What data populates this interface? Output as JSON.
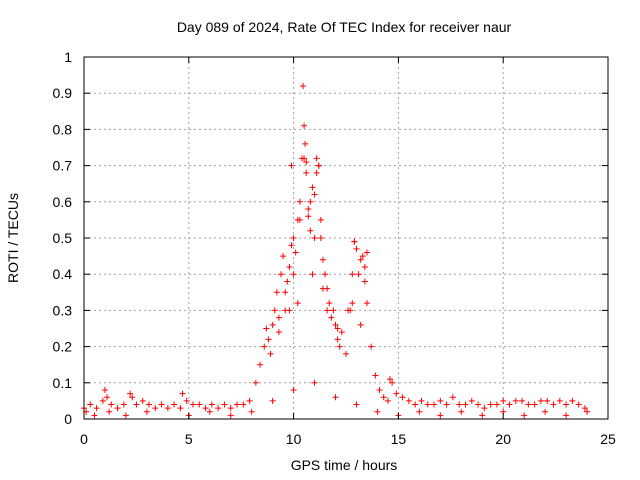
{
  "chart_data": {
    "type": "scatter",
    "title": "Day 089 of 2024, Rate Of TEC Index for receiver naur",
    "xlabel": "GPS time / hours",
    "ylabel": "ROTI / TECUs",
    "xlim": [
      0,
      25
    ],
    "ylim": [
      0,
      1
    ],
    "x_ticks": [
      0,
      5,
      10,
      15,
      20,
      25
    ],
    "y_ticks": [
      0,
      0.1,
      0.2,
      0.3,
      0.4,
      0.5,
      0.6,
      0.7,
      0.8,
      0.9,
      1
    ],
    "x_tick_labels": [
      "0",
      "5",
      "10",
      "15",
      "20",
      "25"
    ],
    "y_tick_labels": [
      "0",
      "0.1",
      "0.2",
      "0.3",
      "0.4",
      "0.5",
      "0.6",
      "0.7",
      "0.8",
      "0.9",
      "1"
    ],
    "grid": true,
    "marker": "plus",
    "color": "#ff0000",
    "series": [
      {
        "x": [
          0.0,
          0.3,
          0.6,
          0.9,
          1.0,
          1.1,
          1.3,
          1.6,
          1.9,
          2.2,
          2.3,
          2.5,
          2.8,
          3.1,
          3.4,
          3.7,
          4.0,
          4.3,
          4.6,
          4.7,
          4.9,
          5.2,
          5.5,
          5.8,
          6.1,
          6.4,
          6.7,
          7.0,
          7.3,
          7.6,
          7.9,
          8.2,
          8.4,
          8.6,
          8.7,
          8.8,
          8.9,
          9.0,
          9.1,
          9.2,
          9.3,
          9.4,
          9.5,
          9.6,
          9.7,
          9.8,
          9.9,
          10.0,
          10.1,
          10.2,
          10.3,
          10.4,
          10.45,
          10.5,
          10.55,
          10.6,
          10.7,
          10.8,
          10.9,
          11.0,
          11.1,
          11.2,
          11.3,
          11.4,
          11.5,
          11.6,
          11.7,
          11.8,
          11.9,
          12.0,
          12.1,
          12.2,
          12.3,
          12.5,
          12.7,
          12.8,
          12.9,
          13.0,
          13.1,
          13.2,
          13.3,
          13.4,
          13.5,
          13.7,
          13.9,
          14.1,
          14.3,
          14.5,
          14.6,
          14.7,
          14.9,
          15.2,
          15.5,
          15.8,
          16.1,
          16.4,
          16.7,
          17.0,
          17.3,
          17.6,
          17.9,
          18.2,
          18.5,
          18.8,
          19.1,
          19.4,
          19.7,
          20.0,
          20.3,
          20.6,
          20.9,
          21.2,
          21.5,
          21.8,
          22.1,
          22.4,
          22.7,
          23.0,
          23.3,
          23.6,
          23.9,
          9.9,
          10.0,
          10.3,
          10.5,
          10.6,
          10.7,
          10.8,
          11.0,
          11.1,
          11.2,
          11.3,
          12.8,
          12.9,
          13.4,
          13.5,
          9.3,
          9.6,
          9.8,
          10.2,
          10.9,
          11.4,
          11.6,
          12.1,
          12.6,
          13.2,
          0.1,
          0.5,
          1.2,
          2.0,
          3.0,
          5.0,
          6.0,
          7.0,
          8.0,
          9.0,
          10.0,
          11.0,
          12.0,
          13.0,
          14.0,
          15.0,
          16.0,
          17.0,
          18.0,
          19.0,
          20.0,
          21.0,
          22.0,
          23.0,
          24.0
        ],
        "y": [
          0.03,
          0.04,
          0.03,
          0.05,
          0.08,
          0.06,
          0.04,
          0.03,
          0.04,
          0.07,
          0.06,
          0.04,
          0.05,
          0.04,
          0.03,
          0.04,
          0.03,
          0.04,
          0.03,
          0.07,
          0.05,
          0.04,
          0.04,
          0.03,
          0.04,
          0.03,
          0.04,
          0.03,
          0.04,
          0.04,
          0.05,
          0.1,
          0.15,
          0.2,
          0.25,
          0.22,
          0.18,
          0.26,
          0.3,
          0.35,
          0.24,
          0.4,
          0.45,
          0.3,
          0.38,
          0.42,
          0.48,
          0.5,
          0.46,
          0.55,
          0.6,
          0.72,
          0.92,
          0.81,
          0.76,
          0.68,
          0.56,
          0.52,
          0.64,
          0.62,
          0.72,
          0.7,
          0.5,
          0.44,
          0.4,
          0.36,
          0.32,
          0.28,
          0.3,
          0.26,
          0.22,
          0.2,
          0.24,
          0.18,
          0.3,
          0.32,
          0.49,
          0.47,
          0.4,
          0.44,
          0.45,
          0.38,
          0.32,
          0.2,
          0.12,
          0.08,
          0.06,
          0.05,
          0.11,
          0.1,
          0.07,
          0.06,
          0.05,
          0.04,
          0.05,
          0.04,
          0.04,
          0.05,
          0.04,
          0.06,
          0.04,
          0.04,
          0.05,
          0.04,
          0.03,
          0.04,
          0.04,
          0.05,
          0.04,
          0.05,
          0.05,
          0.04,
          0.04,
          0.05,
          0.05,
          0.04,
          0.05,
          0.04,
          0.05,
          0.04,
          0.03,
          0.7,
          0.4,
          0.55,
          0.72,
          0.71,
          0.58,
          0.6,
          0.5,
          0.68,
          0.7,
          0.55,
          0.4,
          0.49,
          0.42,
          0.46,
          0.28,
          0.35,
          0.3,
          0.32,
          0.4,
          0.36,
          0.3,
          0.25,
          0.3,
          0.26,
          0.02,
          0.01,
          0.02,
          0.01,
          0.02,
          0.01,
          0.02,
          0.01,
          0.02,
          0.05,
          0.08,
          0.1,
          0.06,
          0.04,
          0.02,
          0.01,
          0.02,
          0.01,
          0.02,
          0.01,
          0.02,
          0.01,
          0.02,
          0.01,
          0.02
        ]
      }
    ]
  }
}
